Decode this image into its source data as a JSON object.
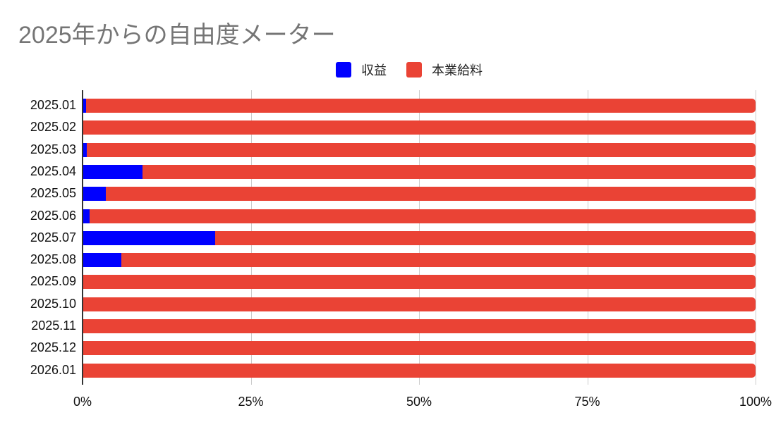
{
  "chart_data": {
    "type": "bar",
    "orientation": "horizontal",
    "stacked": "100%",
    "title": "2025年からの自由度メーター",
    "xlabel": "",
    "ylabel": "",
    "xlim": [
      0,
      100
    ],
    "x_ticks": [
      "0%",
      "25%",
      "50%",
      "75%",
      "100%"
    ],
    "grid": true,
    "legend_position": "top",
    "categories": [
      "2025.01",
      "2025.02",
      "2025.03",
      "2025.04",
      "2025.05",
      "2025.06",
      "2025.07",
      "2025.08",
      "2025.09",
      "2025.10",
      "2025.11",
      "2025.12",
      "2026.01"
    ],
    "series": [
      {
        "name": "収益",
        "color": "#0000ff",
        "values": [
          0.5,
          0,
          0.6,
          8.9,
          3.5,
          1.0,
          19.7,
          5.8,
          0,
          0,
          0,
          0,
          0
        ]
      },
      {
        "name": "本業給料",
        "color": "#ea4335",
        "values": [
          99.5,
          100,
          99.4,
          91.1,
          96.5,
          99.0,
          80.3,
          94.2,
          100,
          100,
          100,
          100,
          100
        ]
      }
    ]
  },
  "title": "2025年からの自由度メーター",
  "legend": [
    {
      "label": "収益",
      "color": "#0000ff"
    },
    {
      "label": "本業給料",
      "color": "#ea4335"
    }
  ],
  "x_ticks": [
    "0%",
    "25%",
    "50%",
    "75%",
    "100%"
  ],
  "categories": [
    "2025.01",
    "2025.02",
    "2025.03",
    "2025.04",
    "2025.05",
    "2025.06",
    "2025.07",
    "2025.08",
    "2025.09",
    "2025.10",
    "2025.11",
    "2025.12",
    "2026.01"
  ]
}
